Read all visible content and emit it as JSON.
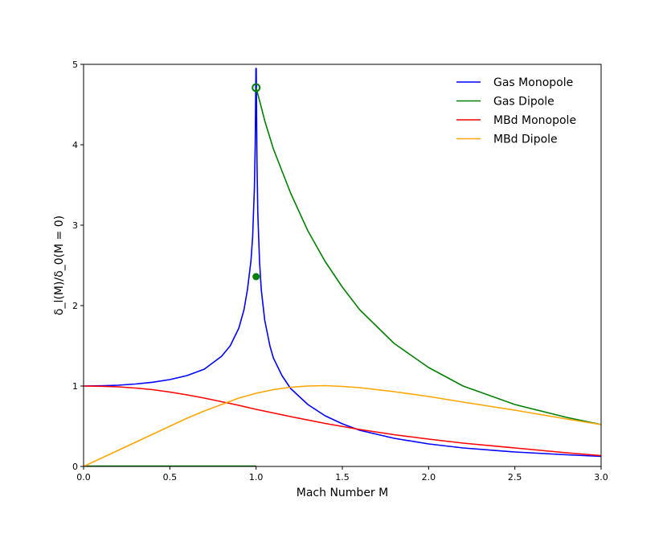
{
  "chart_data": {
    "type": "line",
    "xlabel": "Mach Number M",
    "ylabel": "δ_l(M)/δ_0(M = 0)",
    "xlim": [
      0,
      3
    ],
    "ylim": [
      0,
      5
    ],
    "x_ticks": [
      "0.0",
      "0.5",
      "1.0",
      "1.5",
      "2.0",
      "2.5",
      "3.0"
    ],
    "y_ticks": [
      "0",
      "1",
      "2",
      "3",
      "4",
      "5"
    ],
    "grid": false,
    "legend_position": "top-right",
    "series": [
      {
        "name": "Gas Monopole",
        "color": "#0000ff",
        "x": [
          0,
          0.1,
          0.2,
          0.3,
          0.4,
          0.5,
          0.6,
          0.7,
          0.8,
          0.85,
          0.9,
          0.93,
          0.95,
          0.97,
          0.98,
          0.99,
          0.995,
          0.999,
          1.0,
          1.001,
          1.005,
          1.01,
          1.02,
          1.03,
          1.05,
          1.08,
          1.1,
          1.15,
          1.2,
          1.3,
          1.4,
          1.5,
          1.6,
          1.8,
          2.0,
          2.2,
          2.5,
          2.8,
          3.0
        ],
        "y": [
          1.0,
          1.003,
          1.01,
          1.025,
          1.047,
          1.08,
          1.13,
          1.21,
          1.37,
          1.5,
          1.72,
          1.95,
          2.2,
          2.55,
          2.85,
          3.45,
          4.0,
          4.95,
          4.95,
          4.95,
          3.8,
          3.15,
          2.55,
          2.2,
          1.82,
          1.5,
          1.35,
          1.13,
          0.97,
          0.77,
          0.63,
          0.53,
          0.45,
          0.35,
          0.28,
          0.23,
          0.18,
          0.145,
          0.125
        ]
      },
      {
        "name": "Gas Dipole",
        "color": "#008000",
        "x": [
          1.0,
          1.02,
          1.05,
          1.1,
          1.2,
          1.3,
          1.4,
          1.5,
          1.6,
          1.8,
          2.0,
          2.2,
          2.5,
          2.8,
          3.0
        ],
        "y": [
          4.71,
          4.55,
          4.3,
          3.95,
          3.4,
          2.93,
          2.55,
          2.23,
          1.95,
          1.53,
          1.23,
          1.0,
          0.77,
          0.61,
          0.52
        ]
      },
      {
        "name": "MBd Monopole",
        "color": "#ff0000",
        "x": [
          0,
          0.1,
          0.2,
          0.3,
          0.4,
          0.5,
          0.6,
          0.7,
          0.8,
          0.9,
          1.0,
          1.2,
          1.4,
          1.6,
          1.8,
          2.0,
          2.2,
          2.5,
          2.8,
          3.0
        ],
        "y": [
          1.0,
          0.997,
          0.99,
          0.975,
          0.955,
          0.925,
          0.89,
          0.85,
          0.805,
          0.76,
          0.71,
          0.62,
          0.535,
          0.46,
          0.395,
          0.34,
          0.29,
          0.23,
          0.17,
          0.135
        ]
      },
      {
        "name": "MBd Dipole",
        "color": "#ffa500",
        "x": [
          0,
          0.1,
          0.2,
          0.3,
          0.4,
          0.5,
          0.6,
          0.7,
          0.8,
          0.9,
          1.0,
          1.1,
          1.2,
          1.3,
          1.4,
          1.5,
          1.6,
          1.8,
          2.0,
          2.2,
          2.5,
          2.8,
          3.0
        ],
        "y": [
          0.0,
          0.1,
          0.2,
          0.3,
          0.4,
          0.5,
          0.6,
          0.69,
          0.77,
          0.85,
          0.91,
          0.955,
          0.985,
          1.0,
          1.005,
          0.995,
          0.98,
          0.93,
          0.87,
          0.8,
          0.7,
          0.59,
          0.52
        ]
      }
    ],
    "extra_segments": [
      {
        "color": "#008000",
        "x": [
          0,
          1.0
        ],
        "y": [
          0,
          0
        ]
      }
    ],
    "markers": [
      {
        "x": 1.0,
        "y": 4.71,
        "style": "open-circle",
        "color": "#008000"
      },
      {
        "x": 1.0,
        "y": 2.36,
        "style": "filled-circle",
        "color": "#008000"
      }
    ]
  }
}
